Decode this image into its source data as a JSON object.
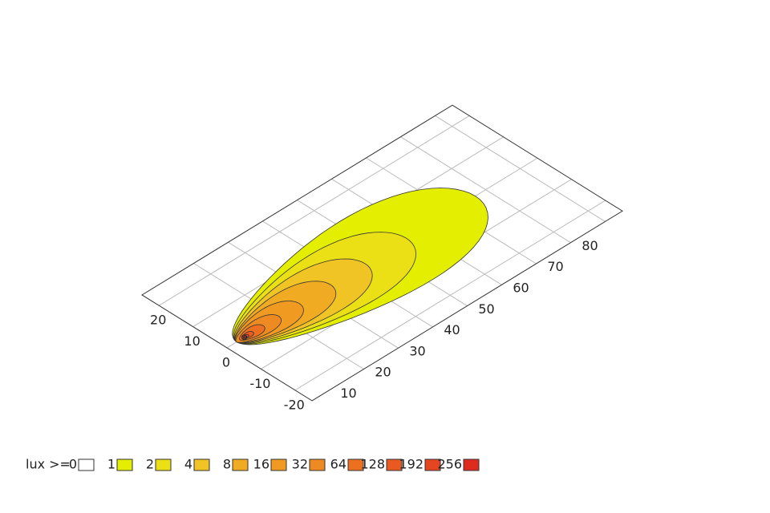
{
  "chart_data": {
    "type": "isolux",
    "xlim": [
      -5,
      85
    ],
    "ylim": [
      -25,
      25
    ],
    "xticks": [
      10,
      20,
      30,
      40,
      50,
      60,
      70,
      80
    ],
    "yticks": [
      -20,
      -10,
      0,
      10,
      20
    ],
    "grid": true,
    "legend_label": "lux >=",
    "levels": [
      0,
      1,
      2,
      4,
      8,
      16,
      32,
      64,
      128,
      192,
      256
    ],
    "colors": [
      "#ffffff",
      "#e3ee00",
      "#ebe016",
      "#f0c424",
      "#f1ab22",
      "#f09a22",
      "#ee8a22",
      "#ec7020",
      "#e85a20",
      "#e64522",
      "#df2a1e"
    ]
  }
}
